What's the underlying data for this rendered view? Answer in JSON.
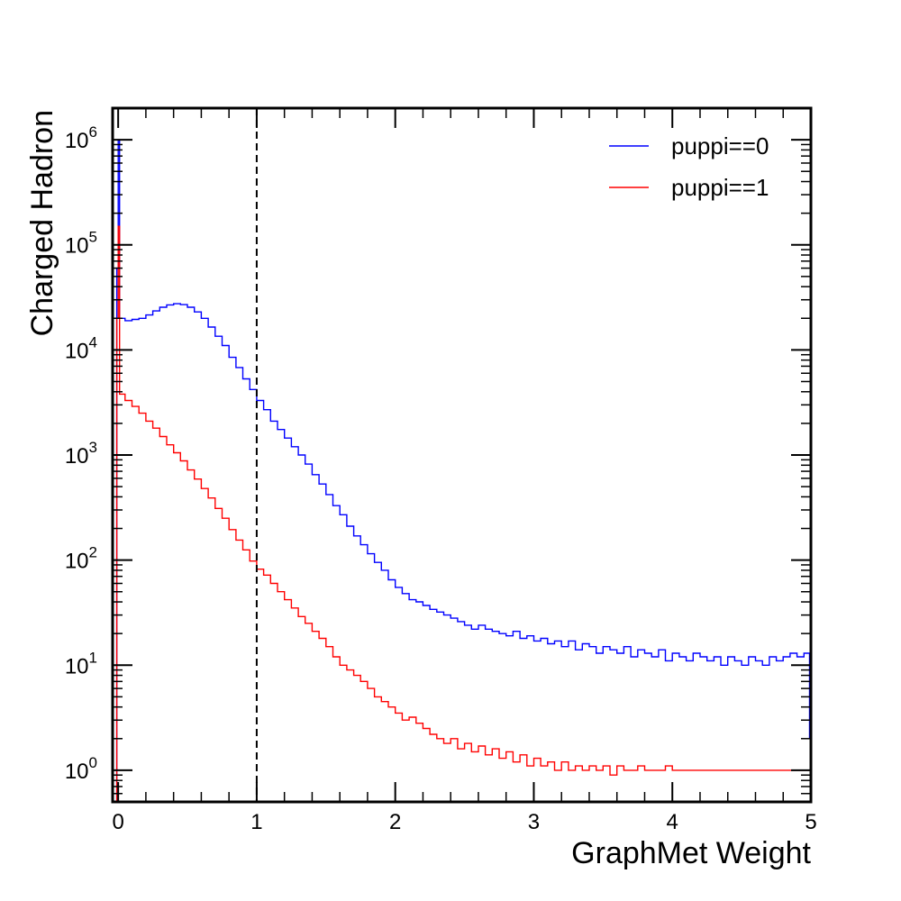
{
  "chart_data": {
    "type": "line",
    "style": "step-histogram",
    "xlabel": "GraphMet Weight",
    "ylabel": "Charged Hadron",
    "xlim": [
      -0.04,
      5.0
    ],
    "ylim": [
      0.5,
      2000000
    ],
    "yscale": "log",
    "x_ticks": [
      0,
      1,
      2,
      3,
      4,
      5
    ],
    "x_tick_labels": [
      "0",
      "1",
      "2",
      "3",
      "4",
      "5"
    ],
    "y_ticks": [
      1,
      10,
      100,
      1000,
      10000,
      100000,
      1000000
    ],
    "y_tick_base": "10",
    "y_tick_exponents": [
      "0",
      "1",
      "2",
      "3",
      "4",
      "5",
      "6"
    ],
    "reference_line": {
      "x": 1.0,
      "style": "dashed",
      "color": "#000000"
    },
    "legend": {
      "position": "top-right"
    },
    "grid": false,
    "series": [
      {
        "name": "puppi==0",
        "color": "#0000ff",
        "points": [
          [
            -0.02,
            0.3
          ],
          [
            -0.01,
            60000
          ],
          [
            0.0,
            1000000
          ],
          [
            0.01,
            20000
          ],
          [
            0.05,
            19000
          ],
          [
            0.1,
            19500
          ],
          [
            0.15,
            20000
          ],
          [
            0.2,
            21500
          ],
          [
            0.25,
            23500
          ],
          [
            0.3,
            25500
          ],
          [
            0.35,
            26800
          ],
          [
            0.4,
            27500
          ],
          [
            0.45,
            27000
          ],
          [
            0.5,
            25500
          ],
          [
            0.55,
            23000
          ],
          [
            0.6,
            20000
          ],
          [
            0.65,
            16500
          ],
          [
            0.7,
            13500
          ],
          [
            0.75,
            11000
          ],
          [
            0.8,
            8500
          ],
          [
            0.85,
            6800
          ],
          [
            0.9,
            5300
          ],
          [
            0.95,
            4200
          ],
          [
            1.0,
            3300
          ],
          [
            1.05,
            2700
          ],
          [
            1.1,
            2100
          ],
          [
            1.15,
            1750
          ],
          [
            1.2,
            1450
          ],
          [
            1.25,
            1200
          ],
          [
            1.3,
            1000
          ],
          [
            1.35,
            820
          ],
          [
            1.4,
            650
          ],
          [
            1.45,
            530
          ],
          [
            1.5,
            420
          ],
          [
            1.55,
            330
          ],
          [
            1.6,
            270
          ],
          [
            1.65,
            210
          ],
          [
            1.7,
            170
          ],
          [
            1.75,
            140
          ],
          [
            1.8,
            115
          ],
          [
            1.85,
            95
          ],
          [
            1.9,
            80
          ],
          [
            1.95,
            65
          ],
          [
            2.0,
            55
          ],
          [
            2.05,
            48
          ],
          [
            2.1,
            42
          ],
          [
            2.15,
            40
          ],
          [
            2.2,
            37
          ],
          [
            2.25,
            34
          ],
          [
            2.3,
            32
          ],
          [
            2.35,
            30
          ],
          [
            2.4,
            28
          ],
          [
            2.45,
            26
          ],
          [
            2.5,
            24
          ],
          [
            2.55,
            22
          ],
          [
            2.6,
            24
          ],
          [
            2.65,
            22
          ],
          [
            2.7,
            21
          ],
          [
            2.75,
            20
          ],
          [
            2.8,
            19
          ],
          [
            2.85,
            21
          ],
          [
            2.9,
            18
          ],
          [
            2.95,
            19
          ],
          [
            3.0,
            17
          ],
          [
            3.05,
            18
          ],
          [
            3.1,
            16
          ],
          [
            3.15,
            17
          ],
          [
            3.2,
            15
          ],
          [
            3.25,
            17
          ],
          [
            3.3,
            14
          ],
          [
            3.35,
            16
          ],
          [
            3.4,
            15
          ],
          [
            3.45,
            13
          ],
          [
            3.5,
            15
          ],
          [
            3.55,
            14
          ],
          [
            3.6,
            13
          ],
          [
            3.65,
            15
          ],
          [
            3.7,
            12
          ],
          [
            3.75,
            14
          ],
          [
            3.8,
            13
          ],
          [
            3.85,
            12
          ],
          [
            3.9,
            14
          ],
          [
            3.95,
            11
          ],
          [
            4.0,
            13
          ],
          [
            4.05,
            12
          ],
          [
            4.1,
            11
          ],
          [
            4.15,
            13
          ],
          [
            4.2,
            12
          ],
          [
            4.25,
            11
          ],
          [
            4.3,
            12
          ],
          [
            4.35,
            10
          ],
          [
            4.4,
            12
          ],
          [
            4.45,
            11
          ],
          [
            4.5,
            10
          ],
          [
            4.55,
            12
          ],
          [
            4.6,
            11
          ],
          [
            4.65,
            10
          ],
          [
            4.7,
            12
          ],
          [
            4.75,
            11
          ],
          [
            4.8,
            12
          ],
          [
            4.85,
            13
          ],
          [
            4.9,
            12
          ],
          [
            4.95,
            13
          ],
          [
            4.99,
            2
          ]
        ]
      },
      {
        "name": "puppi==1",
        "color": "#ff0000",
        "points": [
          [
            -0.02,
            0.3
          ],
          [
            -0.01,
            20000
          ],
          [
            0.0,
            150000
          ],
          [
            0.01,
            3800
          ],
          [
            0.05,
            3300
          ],
          [
            0.1,
            2900
          ],
          [
            0.15,
            2500
          ],
          [
            0.2,
            2100
          ],
          [
            0.25,
            1800
          ],
          [
            0.3,
            1500
          ],
          [
            0.35,
            1250
          ],
          [
            0.4,
            1050
          ],
          [
            0.45,
            880
          ],
          [
            0.5,
            720
          ],
          [
            0.55,
            590
          ],
          [
            0.6,
            480
          ],
          [
            0.65,
            390
          ],
          [
            0.7,
            310
          ],
          [
            0.75,
            250
          ],
          [
            0.8,
            195
          ],
          [
            0.85,
            155
          ],
          [
            0.9,
            125
          ],
          [
            0.95,
            98
          ],
          [
            1.0,
            82
          ],
          [
            1.05,
            72
          ],
          [
            1.1,
            60
          ],
          [
            1.15,
            50
          ],
          [
            1.2,
            42
          ],
          [
            1.25,
            35
          ],
          [
            1.3,
            29
          ],
          [
            1.35,
            25
          ],
          [
            1.4,
            21
          ],
          [
            1.45,
            18
          ],
          [
            1.5,
            15
          ],
          [
            1.55,
            12
          ],
          [
            1.6,
            10
          ],
          [
            1.65,
            9
          ],
          [
            1.7,
            8
          ],
          [
            1.75,
            7
          ],
          [
            1.8,
            6
          ],
          [
            1.85,
            5
          ],
          [
            1.9,
            4.5
          ],
          [
            1.95,
            4
          ],
          [
            2.0,
            3.5
          ],
          [
            2.05,
            3
          ],
          [
            2.1,
            3.2
          ],
          [
            2.15,
            2.8
          ],
          [
            2.2,
            2.5
          ],
          [
            2.25,
            2.2
          ],
          [
            2.3,
            2
          ],
          [
            2.35,
            1.8
          ],
          [
            2.4,
            2
          ],
          [
            2.45,
            1.6
          ],
          [
            2.5,
            1.8
          ],
          [
            2.55,
            1.5
          ],
          [
            2.6,
            1.7
          ],
          [
            2.65,
            1.4
          ],
          [
            2.7,
            1.6
          ],
          [
            2.75,
            1.3
          ],
          [
            2.8,
            1.5
          ],
          [
            2.85,
            1.2
          ],
          [
            2.9,
            1.4
          ],
          [
            2.95,
            1.1
          ],
          [
            3.0,
            1.3
          ],
          [
            3.05,
            1.1
          ],
          [
            3.1,
            1.2
          ],
          [
            3.15,
            1
          ],
          [
            3.2,
            1.2
          ],
          [
            3.25,
            1
          ],
          [
            3.3,
            1.1
          ],
          [
            3.35,
            1
          ],
          [
            3.4,
            1.1
          ],
          [
            3.45,
            1
          ],
          [
            3.5,
            1.1
          ],
          [
            3.55,
            0.9
          ],
          [
            3.6,
            1.1
          ],
          [
            3.65,
            1
          ],
          [
            3.7,
            1
          ],
          [
            3.75,
            1.1
          ],
          [
            3.8,
            1
          ],
          [
            3.85,
            1
          ],
          [
            3.9,
            1
          ],
          [
            3.95,
            1.1
          ],
          [
            4.0,
            1
          ],
          [
            4.05,
            1
          ],
          [
            4.1,
            1
          ],
          [
            4.15,
            1
          ],
          [
            4.2,
            1
          ],
          [
            4.25,
            1
          ],
          [
            4.3,
            1
          ],
          [
            4.35,
            1
          ],
          [
            4.4,
            1
          ],
          [
            4.45,
            1
          ],
          [
            4.5,
            1
          ],
          [
            4.55,
            1
          ],
          [
            4.6,
            1
          ],
          [
            4.65,
            1
          ],
          [
            4.7,
            1
          ],
          [
            4.75,
            1
          ],
          [
            4.8,
            1
          ],
          [
            4.85,
            1
          ],
          [
            4.9,
            1
          ],
          [
            4.95,
            1
          ],
          [
            4.99,
            1
          ]
        ]
      }
    ]
  }
}
